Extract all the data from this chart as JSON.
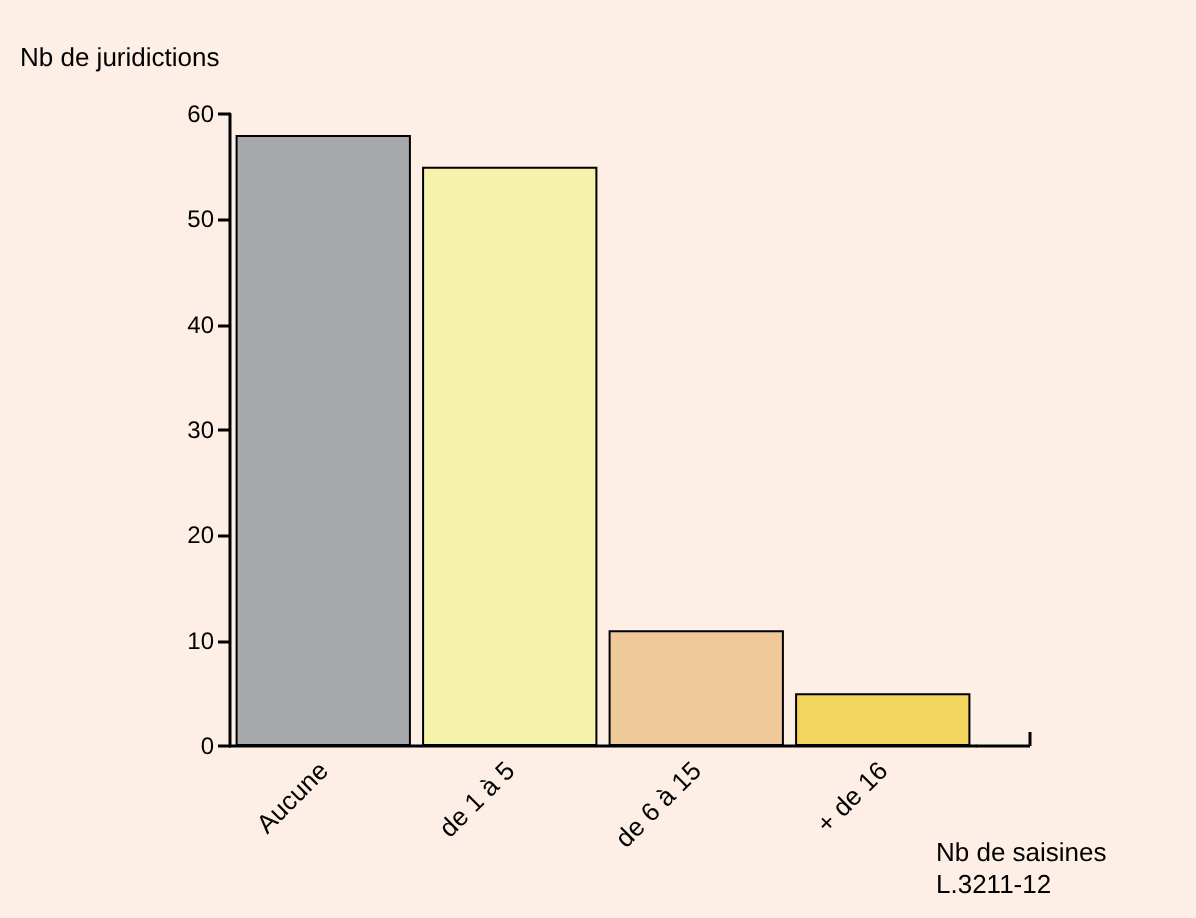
{
  "chart_data": {
    "type": "bar",
    "ylabel": "Nb de juridictions",
    "xlabel": "Nb de saisines\nL.3211-12",
    "categories": [
      "Aucune",
      "de 1 à 5",
      "de 6 à 15",
      "+ de 16"
    ],
    "values": [
      58,
      55,
      11,
      5
    ],
    "colors": [
      "#a7a9ac",
      "#f5f3ab",
      "#f0c99b",
      "#f2d55e"
    ],
    "ylim": [
      0,
      60
    ],
    "yticks": [
      0,
      10,
      20,
      30,
      40,
      50,
      60
    ],
    "grid": false
  }
}
